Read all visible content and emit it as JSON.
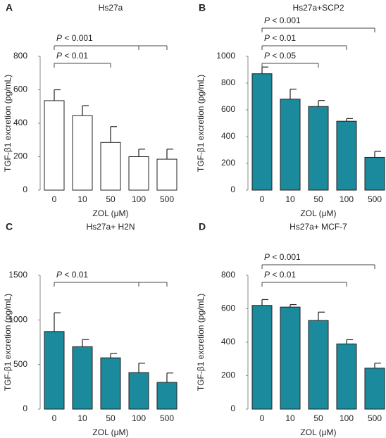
{
  "chart_data": [
    {
      "type": "bar",
      "panel": "A",
      "title": "Hs27a",
      "x_label": "ZOL (μM)",
      "y_label": "TGF-β1 excretion (pg/mL)",
      "categories": [
        "0",
        "10",
        "50",
        "100",
        "500"
      ],
      "values": [
        535,
        445,
        285,
        200,
        185
      ],
      "errors": [
        65,
        60,
        95,
        45,
        60
      ],
      "color": "#ffffff",
      "edge_color": "#222222",
      "ylim": [
        0,
        800
      ],
      "yticks": [
        0,
        200,
        400,
        600,
        800
      ],
      "annotations": [
        {
          "text": "P < 0.01",
          "ticks": [
            0,
            2
          ]
        },
        {
          "text": "P < 0.001",
          "ticks": [
            0,
            3,
            4
          ]
        }
      ]
    },
    {
      "type": "bar",
      "panel": "B",
      "title": "Hs27a+SCP2",
      "x_label": "ZOL (μM)",
      "y_label": "TGF-β1 excretion (pg/mL)",
      "categories": [
        "0",
        "10",
        "50",
        "100",
        "500"
      ],
      "values": [
        870,
        680,
        625,
        515,
        245
      ],
      "errors": [
        50,
        75,
        45,
        20,
        45
      ],
      "color": "#1b8a9c",
      "edge_color": "#222222",
      "ylim": [
        0,
        1000
      ],
      "yticks": [
        0,
        200,
        400,
        600,
        800,
        1000
      ],
      "annotations": [
        {
          "text": "P < 0.05",
          "ticks": [
            0,
            2
          ]
        },
        {
          "text": "P < 0.01",
          "ticks": [
            0,
            3
          ]
        },
        {
          "text": "P < 0.001",
          "ticks": [
            0,
            4
          ]
        }
      ]
    },
    {
      "type": "bar",
      "panel": "C",
      "title": "Hs27a+ H2N",
      "x_label": "ZOL (μM)",
      "y_label": "TGF-β1 excretion (pg/mL)",
      "categories": [
        "0",
        "10",
        "50",
        "100",
        "500"
      ],
      "values": [
        870,
        700,
        575,
        410,
        300
      ],
      "errors": [
        210,
        80,
        50,
        105,
        105
      ],
      "color": "#1b8a9c",
      "edge_color": "#222222",
      "ylim": [
        0,
        1500
      ],
      "yticks": [
        0,
        500,
        1000,
        1500
      ],
      "annotations": [
        {
          "text": "P < 0.01",
          "ticks": [
            0,
            3,
            4
          ]
        }
      ]
    },
    {
      "type": "bar",
      "panel": "D",
      "title": "Hs27a+ MCF-7",
      "x_label": "ZOL (μM)",
      "y_label": "TGF-β1 excretion (pg/mL)",
      "categories": [
        "0",
        "10",
        "50",
        "100",
        "500"
      ],
      "values": [
        620,
        610,
        530,
        390,
        245
      ],
      "errors": [
        35,
        15,
        50,
        25,
        30
      ],
      "color": "#1b8a9c",
      "edge_color": "#222222",
      "ylim": [
        0,
        800
      ],
      "yticks": [
        0,
        200,
        400,
        600,
        800
      ],
      "annotations": [
        {
          "text": "P < 0.01",
          "ticks": [
            0,
            3
          ]
        },
        {
          "text": "P < 0.001",
          "ticks": [
            0,
            4
          ]
        }
      ]
    }
  ]
}
